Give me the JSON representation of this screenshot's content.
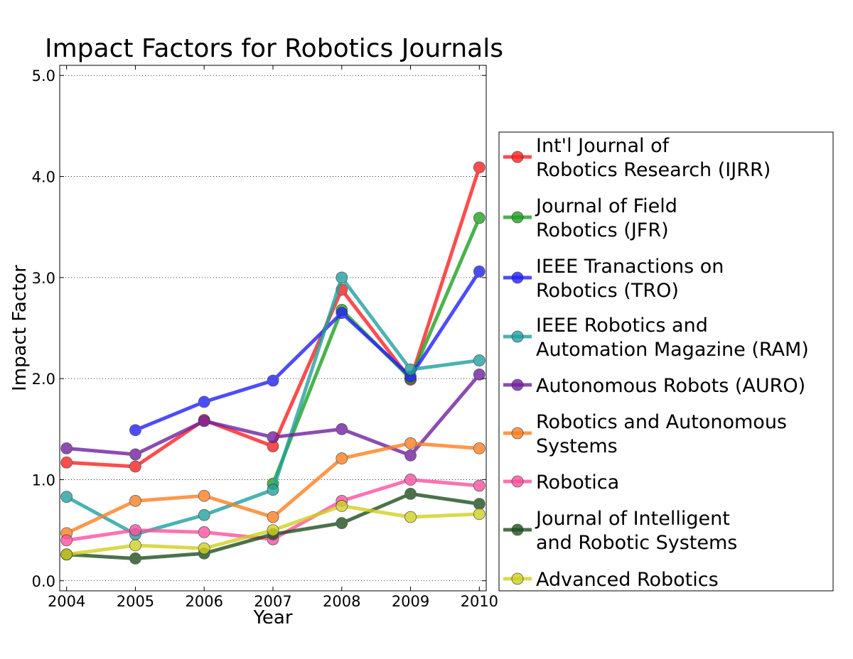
{
  "chart_data": {
    "type": "line",
    "title": "Impact Factors for Robotics Journals",
    "xlabel": "Year",
    "ylabel": "Impact Factor",
    "x": [
      2004,
      2005,
      2006,
      2007,
      2008,
      2009,
      2010
    ],
    "x_tick_labels": [
      "2004",
      "2005",
      "2006",
      "2007",
      "2008",
      "2009",
      "2010"
    ],
    "y_ticks": [
      0,
      1,
      2,
      3,
      4,
      5
    ],
    "y_tick_labels": [
      "0.0",
      "1.0",
      "2.0",
      "3.0",
      "4.0",
      "5.0"
    ],
    "xlim": [
      2003.9,
      2010.1
    ],
    "ylim": [
      -0.1,
      5.1
    ],
    "grid": "horizontal dotted",
    "legend_position": "right, outside",
    "series": [
      {
        "name": "Int'l Journal of\nRobotics Research (IJRR)",
        "color": "#ff2020",
        "values": [
          1.17,
          1.13,
          1.59,
          1.33,
          2.88,
          1.99,
          4.09
        ]
      },
      {
        "name": "Journal of Field\nRobotics (JFR)",
        "color": "#20a020",
        "values": [
          null,
          null,
          null,
          0.96,
          2.68,
          2.0,
          3.59
        ]
      },
      {
        "name": "IEEE Tranactions on\nRobotics (TRO)",
        "color": "#2020ff",
        "values": [
          null,
          1.49,
          1.77,
          1.98,
          2.65,
          2.02,
          3.06
        ]
      },
      {
        "name": "IEEE Robotics and\nAutomation Magazine (RAM)",
        "color": "#20a0a0",
        "values": [
          0.83,
          0.46,
          0.65,
          0.9,
          3.0,
          2.09,
          2.18
        ]
      },
      {
        "name": "Autonomous Robots (AURO)",
        "color": "#7020a0",
        "values": [
          1.31,
          1.25,
          1.58,
          1.42,
          1.5,
          1.24,
          2.04
        ]
      },
      {
        "name": "Robotics and Autonomous\nSystems",
        "color": "#ff7f20",
        "values": [
          0.47,
          0.79,
          0.84,
          0.63,
          1.21,
          1.36,
          1.31
        ]
      },
      {
        "name": "Robotica",
        "color": "#ff4fa0",
        "values": [
          0.4,
          0.5,
          0.48,
          0.41,
          0.79,
          1.0,
          0.94
        ]
      },
      {
        "name": "Journal of Intelligent\nand Robotic Systems",
        "color": "#1f4f1f",
        "values": [
          0.26,
          0.22,
          0.27,
          0.46,
          0.57,
          0.86,
          0.76
        ]
      },
      {
        "name": "Advanced Robotics",
        "color": "#d0d020",
        "values": [
          0.26,
          0.35,
          0.32,
          0.5,
          0.74,
          0.63,
          0.66
        ]
      }
    ]
  }
}
